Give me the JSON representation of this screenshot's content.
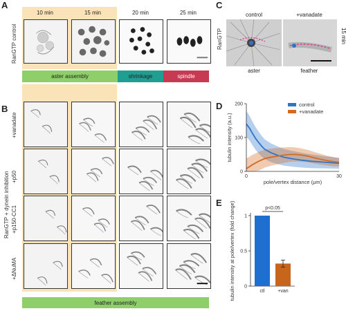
{
  "panels": {
    "a": "A",
    "b": "B",
    "c": "C",
    "d": "D",
    "e": "E"
  },
  "panelA": {
    "row_label": "RanGTP control",
    "times": [
      "10 min",
      "15 min",
      "20 min",
      "25 min"
    ],
    "phases": [
      {
        "label": "aster assembly",
        "color": "#8fcf6a"
      },
      {
        "label": "shrinkage",
        "color": "#1f9e91"
      },
      {
        "label": "spindle",
        "color": "#c73a52"
      }
    ]
  },
  "panelB": {
    "side_label": "RanGTP + dynein inhibition",
    "rows": [
      "+vanadate",
      "+p50",
      "+p150-CC1",
      "+ΔNuMA"
    ],
    "bottom_bar": "feather assembly"
  },
  "panelC": {
    "headers": [
      "control",
      "+vanadate"
    ],
    "left_label": "RanGTP",
    "right_label": "15 min",
    "bottom": [
      "aster",
      "feather"
    ]
  },
  "chart_data": [
    {
      "type": "line",
      "panel": "D",
      "xlabel": "pole/vertex distance (μm)",
      "ylabel": "tubulin intensity (a.u.)",
      "xlim": [
        0,
        30
      ],
      "ylim": [
        0,
        200
      ],
      "yticks": [
        0,
        100,
        200
      ],
      "xticks": [
        0,
        30
      ],
      "legend_position": "top-right",
      "series": [
        {
          "name": "control",
          "color": "#2e75c9",
          "x": [
            0,
            1,
            2,
            3,
            4,
            5,
            6,
            8,
            10,
            12,
            15,
            18,
            21,
            24,
            27,
            30
          ],
          "y": [
            140,
            128,
            112,
            97,
            85,
            74,
            65,
            55,
            48,
            42,
            37,
            33,
            30,
            28,
            26,
            24
          ]
        },
        {
          "name": "+vanadate",
          "color": "#d46a1f",
          "x": [
            0,
            2,
            4,
            6,
            8,
            10,
            12,
            14,
            16,
            18,
            20,
            22,
            24,
            26,
            28,
            30
          ],
          "y": [
            8,
            20,
            30,
            38,
            42,
            45,
            48,
            50,
            50,
            48,
            45,
            40,
            36,
            32,
            29,
            27
          ]
        }
      ]
    },
    {
      "type": "bar",
      "panel": "E",
      "categories": [
        "ctl",
        "+van"
      ],
      "values": [
        1.0,
        0.32
      ],
      "error": [
        0,
        0.05
      ],
      "colors": [
        "#1f6fd1",
        "#c8651c"
      ],
      "ylabel": "tubulin intensity at pole/vertex (fold change)",
      "ylim": [
        0,
        1
      ],
      "yticks": [
        0,
        0.5,
        1
      ],
      "annotation": "p<0.05"
    }
  ]
}
